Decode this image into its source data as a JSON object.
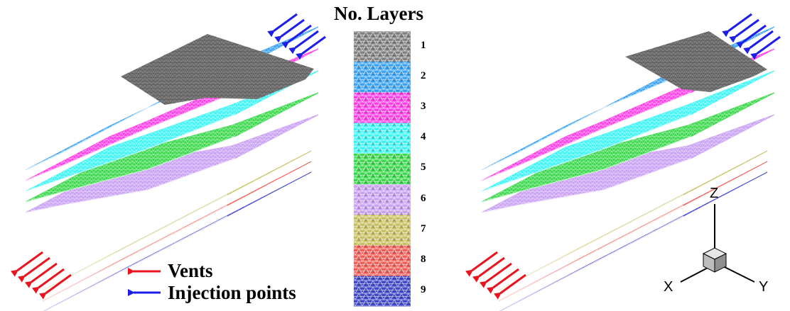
{
  "legend": {
    "title": "No. Layers",
    "layers": [
      {
        "num": "1",
        "color": "#7f7f7f"
      },
      {
        "num": "2",
        "color": "#3aa2f2"
      },
      {
        "num": "3",
        "color": "#ff3ee6"
      },
      {
        "num": "4",
        "color": "#3cf4f4"
      },
      {
        "num": "5",
        "color": "#39d84a"
      },
      {
        "num": "6",
        "color": "#c9a0f4"
      },
      {
        "num": "7",
        "color": "#c8c060"
      },
      {
        "num": "8",
        "color": "#ef5d56"
      },
      {
        "num": "9",
        "color": "#4048c8"
      }
    ]
  },
  "annotations": {
    "vents_label": "Vents",
    "injection_label": "Injection points",
    "vent_arrow_color": "#e8141e",
    "injection_arrow_color": "#1e1ee8"
  },
  "axes": {
    "x": "X",
    "y": "Y",
    "z": "Z"
  }
}
